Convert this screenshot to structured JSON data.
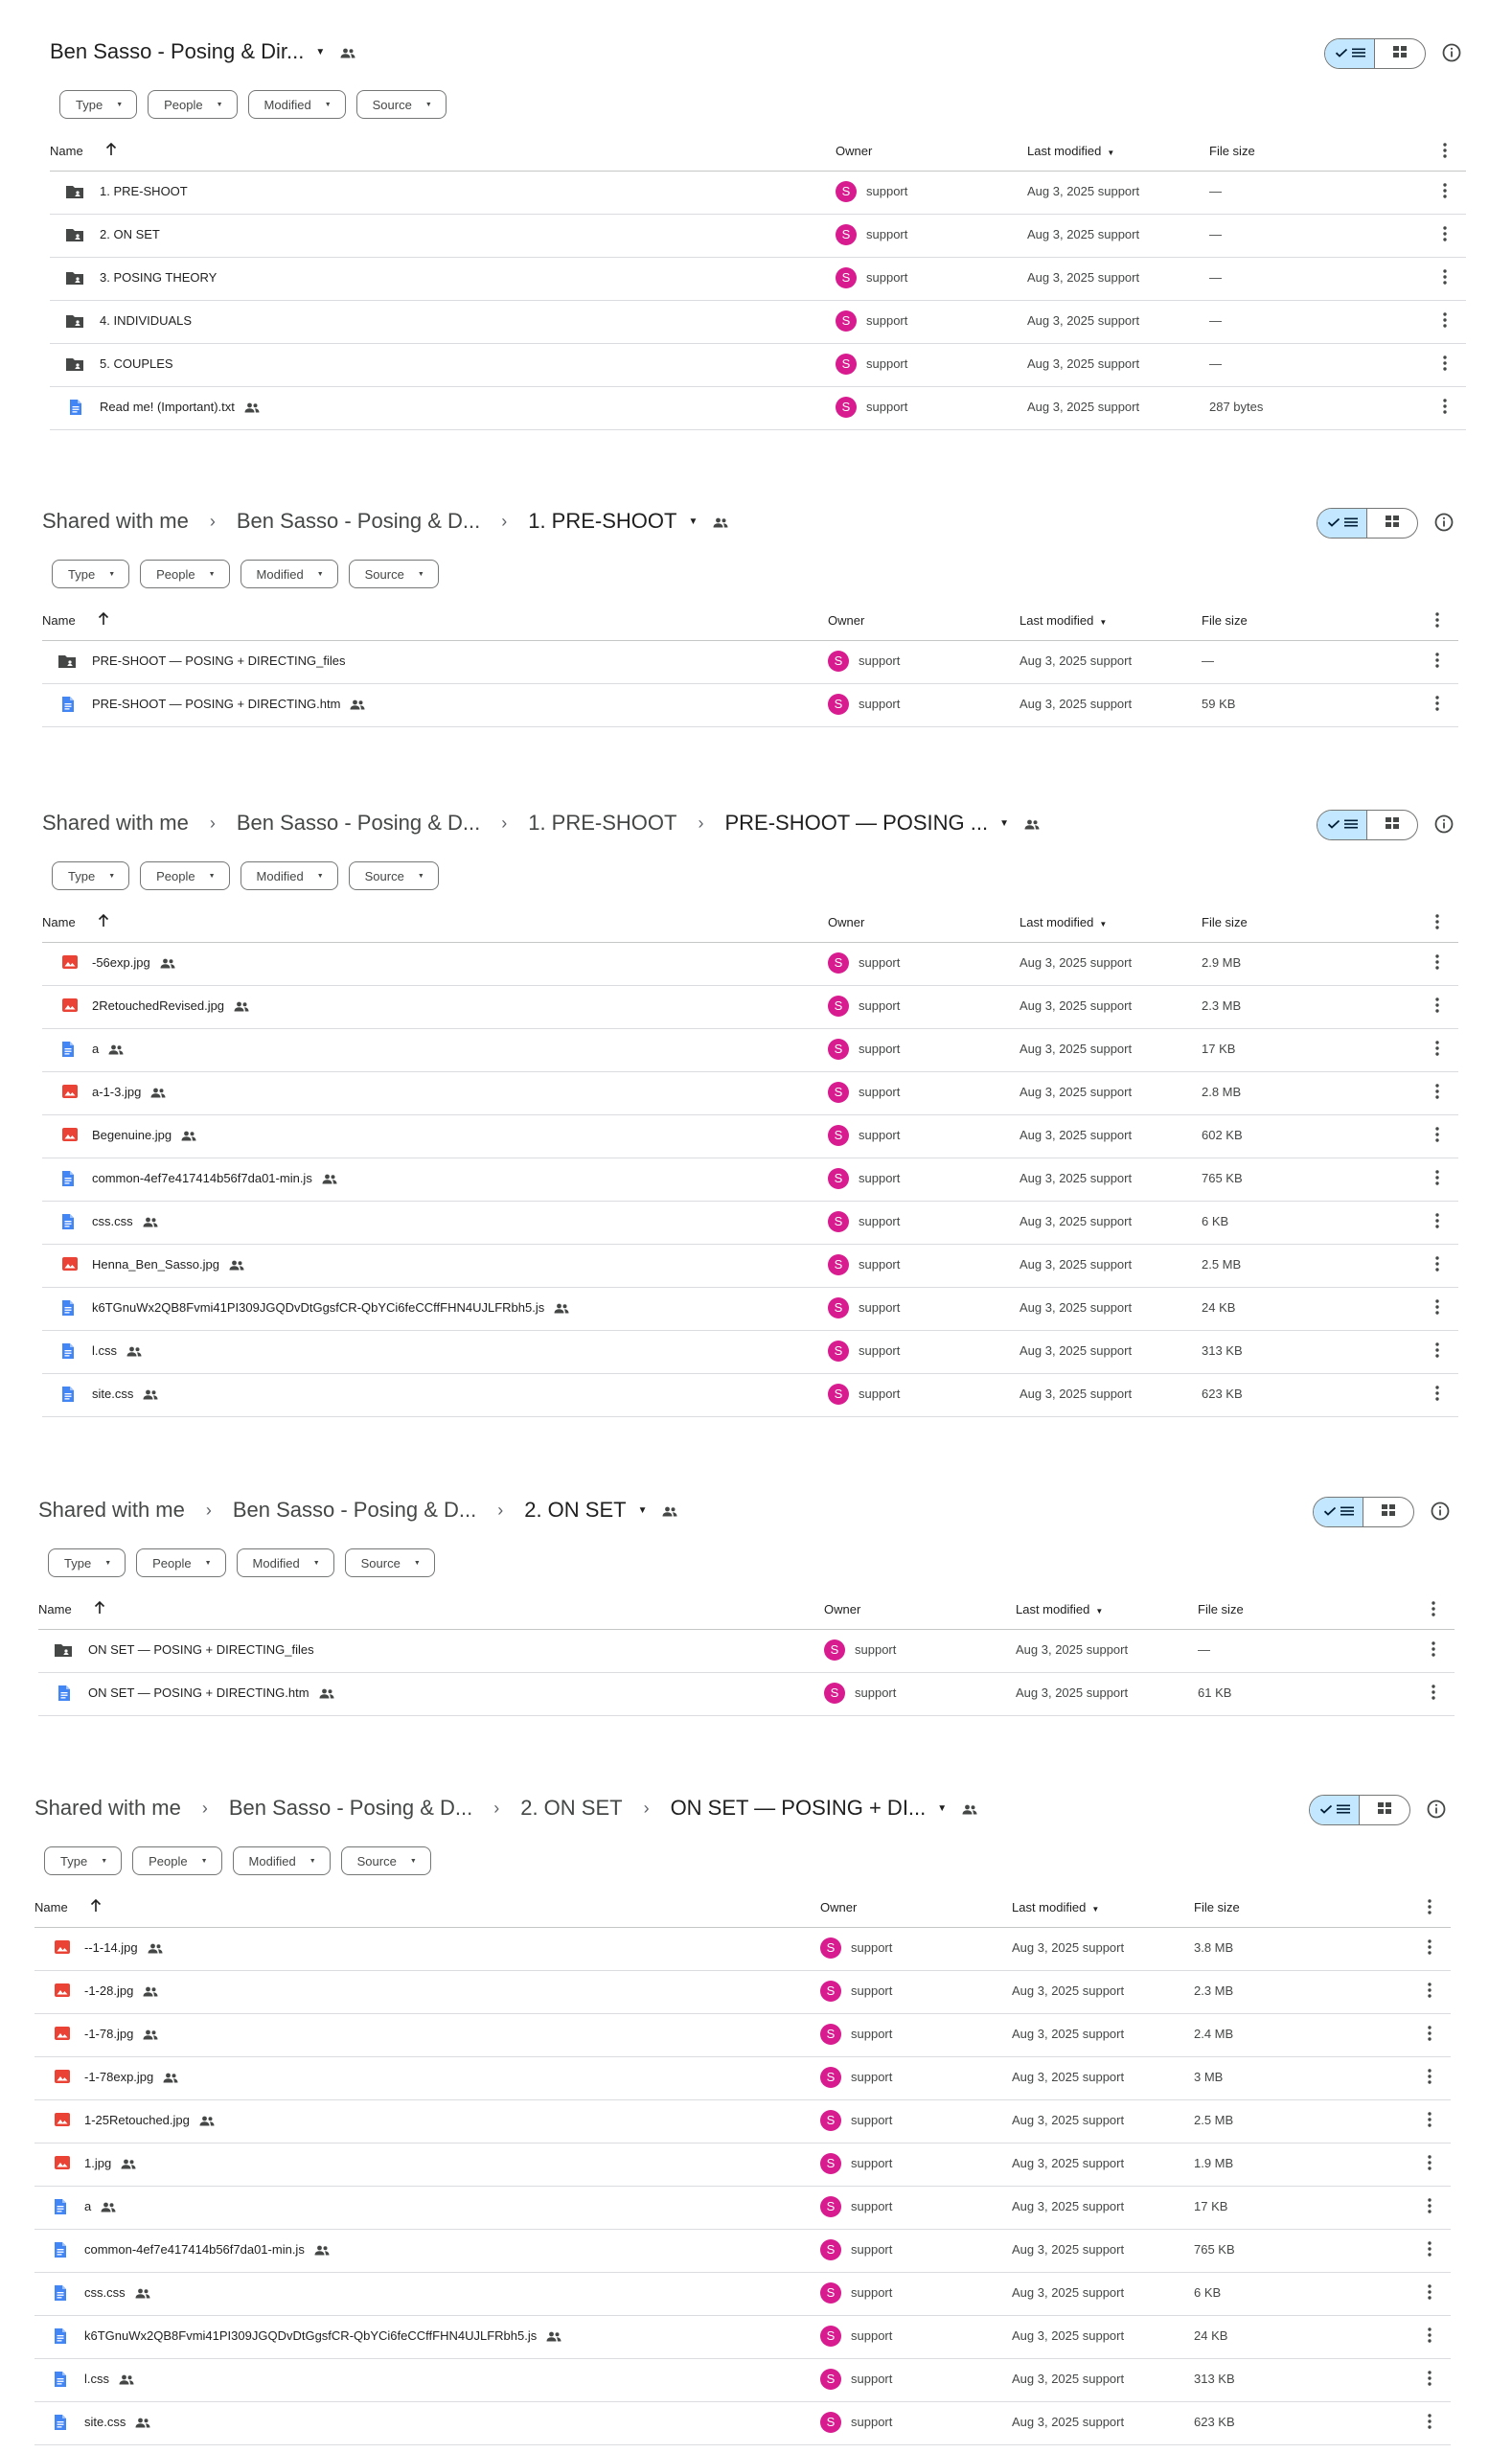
{
  "filters": {
    "type": "Type",
    "people": "People",
    "modified": "Modified",
    "source": "Source"
  },
  "columns": {
    "name": "Name",
    "owner": "Owner",
    "modified": "Last modified",
    "size": "File size"
  },
  "owner": {
    "name": "support",
    "initial": "S"
  },
  "panels": [
    {
      "breadcrumb": [
        "Ben Sasso - Posing & Dir..."
      ],
      "rows": [
        {
          "type": "folder",
          "name": "1. PRE-SHOOT",
          "modified": "Aug 3, 2025 support",
          "size": "—",
          "shared": false
        },
        {
          "type": "folder",
          "name": "2. ON SET",
          "modified": "Aug 3, 2025 support",
          "size": "—",
          "shared": false
        },
        {
          "type": "folder",
          "name": "3. POSING THEORY",
          "modified": "Aug 3, 2025 support",
          "size": "—",
          "shared": false
        },
        {
          "type": "folder",
          "name": "4. INDIVIDUALS",
          "modified": "Aug 3, 2025 support",
          "size": "—",
          "shared": false
        },
        {
          "type": "folder",
          "name": "5. COUPLES",
          "modified": "Aug 3, 2025 support",
          "size": "—",
          "shared": false
        },
        {
          "type": "doc",
          "name": "Read me! (Important).txt",
          "modified": "Aug 3, 2025 support",
          "size": "287 bytes",
          "shared": true
        }
      ]
    },
    {
      "breadcrumb": [
        "Shared with me",
        "Ben Sasso - Posing & D...",
        "1. PRE-SHOOT"
      ],
      "rows": [
        {
          "type": "folder",
          "name": "PRE-SHOOT — POSING + DIRECTING_files",
          "modified": "Aug 3, 2025 support",
          "size": "—",
          "shared": false
        },
        {
          "type": "doc",
          "name": "PRE-SHOOT — POSING + DIRECTING.htm",
          "modified": "Aug 3, 2025 support",
          "size": "59 KB",
          "shared": true
        }
      ]
    },
    {
      "breadcrumb": [
        "Shared with me",
        "Ben Sasso - Posing & D...",
        "1. PRE-SHOOT",
        "PRE-SHOOT — POSING ..."
      ],
      "rows": [
        {
          "type": "image",
          "name": "-56exp.jpg",
          "modified": "Aug 3, 2025 support",
          "size": "2.9 MB",
          "shared": true
        },
        {
          "type": "image",
          "name": "2RetouchedRevised.jpg",
          "modified": "Aug 3, 2025 support",
          "size": "2.3 MB",
          "shared": true
        },
        {
          "type": "doc",
          "name": "a",
          "modified": "Aug 3, 2025 support",
          "size": "17 KB",
          "shared": true
        },
        {
          "type": "image",
          "name": "a-1-3.jpg",
          "modified": "Aug 3, 2025 support",
          "size": "2.8 MB",
          "shared": true
        },
        {
          "type": "image",
          "name": "Begenuine.jpg",
          "modified": "Aug 3, 2025 support",
          "size": "602 KB",
          "shared": true
        },
        {
          "type": "doc",
          "name": "common-4ef7e417414b56f7da01-min.js",
          "modified": "Aug 3, 2025 support",
          "size": "765 KB",
          "shared": true
        },
        {
          "type": "doc",
          "name": "css.css",
          "modified": "Aug 3, 2025 support",
          "size": "6 KB",
          "shared": true
        },
        {
          "type": "image",
          "name": "Henna_Ben_Sasso.jpg",
          "modified": "Aug 3, 2025 support",
          "size": "2.5 MB",
          "shared": true
        },
        {
          "type": "doc",
          "name": "k6TGnuWx2QB8Fvmi41PI309JGQDvDtGgsfCR-QbYCi6feCCffFHN4UJLFRbh5.js",
          "modified": "Aug 3, 2025 support",
          "size": "24 KB",
          "shared": true
        },
        {
          "type": "doc",
          "name": "l.css",
          "modified": "Aug 3, 2025 support",
          "size": "313 KB",
          "shared": true
        },
        {
          "type": "doc",
          "name": "site.css",
          "modified": "Aug 3, 2025 support",
          "size": "623 KB",
          "shared": true
        }
      ]
    },
    {
      "breadcrumb": [
        "Shared with me",
        "Ben Sasso - Posing & D...",
        "2. ON SET"
      ],
      "rows": [
        {
          "type": "folder",
          "name": "ON SET — POSING + DIRECTING_files",
          "modified": "Aug 3, 2025 support",
          "size": "—",
          "shared": false
        },
        {
          "type": "doc",
          "name": "ON SET — POSING + DIRECTING.htm",
          "modified": "Aug 3, 2025 support",
          "size": "61 KB",
          "shared": true
        }
      ]
    },
    {
      "breadcrumb": [
        "Shared with me",
        "Ben Sasso - Posing & D...",
        "2. ON SET",
        "ON SET — POSING + DI..."
      ],
      "rows": [
        {
          "type": "image",
          "name": "--1-14.jpg",
          "modified": "Aug 3, 2025 support",
          "size": "3.8 MB",
          "shared": true
        },
        {
          "type": "image",
          "name": "-1-28.jpg",
          "modified": "Aug 3, 2025 support",
          "size": "2.3 MB",
          "shared": true
        },
        {
          "type": "image",
          "name": "-1-78.jpg",
          "modified": "Aug 3, 2025 support",
          "size": "2.4 MB",
          "shared": true
        },
        {
          "type": "image",
          "name": "-1-78exp.jpg",
          "modified": "Aug 3, 2025 support",
          "size": "3 MB",
          "shared": true
        },
        {
          "type": "image",
          "name": "1-25Retouched.jpg",
          "modified": "Aug 3, 2025 support",
          "size": "2.5 MB",
          "shared": true
        },
        {
          "type": "image",
          "name": "1.jpg",
          "modified": "Aug 3, 2025 support",
          "size": "1.9 MB",
          "shared": true
        },
        {
          "type": "doc",
          "name": "a",
          "modified": "Aug 3, 2025 support",
          "size": "17 KB",
          "shared": true
        },
        {
          "type": "doc",
          "name": "common-4ef7e417414b56f7da01-min.js",
          "modified": "Aug 3, 2025 support",
          "size": "765 KB",
          "shared": true
        },
        {
          "type": "doc",
          "name": "css.css",
          "modified": "Aug 3, 2025 support",
          "size": "6 KB",
          "shared": true
        },
        {
          "type": "doc",
          "name": "k6TGnuWx2QB8Fvmi41PI309JGQDvDtGgsfCR-QbYCi6feCCffFHN4UJLFRbh5.js",
          "modified": "Aug 3, 2025 support",
          "size": "24 KB",
          "shared": true
        },
        {
          "type": "doc",
          "name": "l.css",
          "modified": "Aug 3, 2025 support",
          "size": "313 KB",
          "shared": true
        },
        {
          "type": "doc",
          "name": "site.css",
          "modified": "Aug 3, 2025 support",
          "size": "623 KB",
          "shared": true
        }
      ]
    }
  ]
}
